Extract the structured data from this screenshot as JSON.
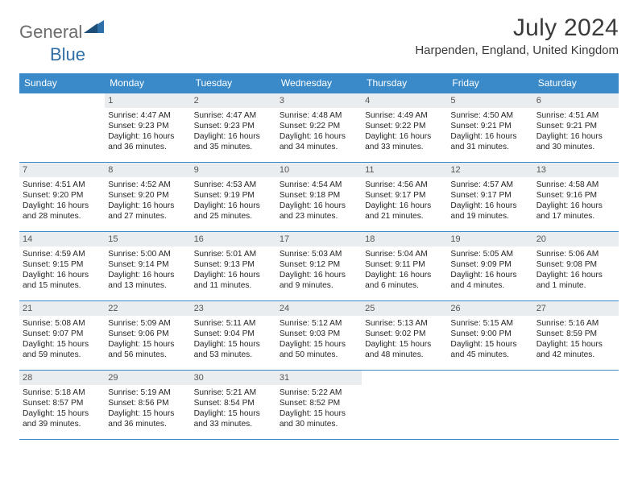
{
  "logo": {
    "word1": "General",
    "word2": "Blue"
  },
  "title": "July 2024",
  "location": "Harpenden, England, United Kingdom",
  "colors": {
    "header_bg": "#3a8ac9",
    "header_text": "#ffffff",
    "daynum_bg": "#e9edef",
    "daynum_text": "#555555",
    "cell_text": "#262626",
    "rule": "#3a8ac9",
    "logo_gray": "#6b6b6b",
    "logo_blue": "#2f6fa7",
    "page_bg": "#ffffff"
  },
  "day_names": [
    "Sunday",
    "Monday",
    "Tuesday",
    "Wednesday",
    "Thursday",
    "Friday",
    "Saturday"
  ],
  "weeks": [
    [
      {
        "n": "",
        "sr": "",
        "ss": "",
        "dl1": "",
        "dl2": ""
      },
      {
        "n": "1",
        "sr": "Sunrise: 4:47 AM",
        "ss": "Sunset: 9:23 PM",
        "dl1": "Daylight: 16 hours",
        "dl2": "and 36 minutes."
      },
      {
        "n": "2",
        "sr": "Sunrise: 4:47 AM",
        "ss": "Sunset: 9:23 PM",
        "dl1": "Daylight: 16 hours",
        "dl2": "and 35 minutes."
      },
      {
        "n": "3",
        "sr": "Sunrise: 4:48 AM",
        "ss": "Sunset: 9:22 PM",
        "dl1": "Daylight: 16 hours",
        "dl2": "and 34 minutes."
      },
      {
        "n": "4",
        "sr": "Sunrise: 4:49 AM",
        "ss": "Sunset: 9:22 PM",
        "dl1": "Daylight: 16 hours",
        "dl2": "and 33 minutes."
      },
      {
        "n": "5",
        "sr": "Sunrise: 4:50 AM",
        "ss": "Sunset: 9:21 PM",
        "dl1": "Daylight: 16 hours",
        "dl2": "and 31 minutes."
      },
      {
        "n": "6",
        "sr": "Sunrise: 4:51 AM",
        "ss": "Sunset: 9:21 PM",
        "dl1": "Daylight: 16 hours",
        "dl2": "and 30 minutes."
      }
    ],
    [
      {
        "n": "7",
        "sr": "Sunrise: 4:51 AM",
        "ss": "Sunset: 9:20 PM",
        "dl1": "Daylight: 16 hours",
        "dl2": "and 28 minutes."
      },
      {
        "n": "8",
        "sr": "Sunrise: 4:52 AM",
        "ss": "Sunset: 9:20 PM",
        "dl1": "Daylight: 16 hours",
        "dl2": "and 27 minutes."
      },
      {
        "n": "9",
        "sr": "Sunrise: 4:53 AM",
        "ss": "Sunset: 9:19 PM",
        "dl1": "Daylight: 16 hours",
        "dl2": "and 25 minutes."
      },
      {
        "n": "10",
        "sr": "Sunrise: 4:54 AM",
        "ss": "Sunset: 9:18 PM",
        "dl1": "Daylight: 16 hours",
        "dl2": "and 23 minutes."
      },
      {
        "n": "11",
        "sr": "Sunrise: 4:56 AM",
        "ss": "Sunset: 9:17 PM",
        "dl1": "Daylight: 16 hours",
        "dl2": "and 21 minutes."
      },
      {
        "n": "12",
        "sr": "Sunrise: 4:57 AM",
        "ss": "Sunset: 9:17 PM",
        "dl1": "Daylight: 16 hours",
        "dl2": "and 19 minutes."
      },
      {
        "n": "13",
        "sr": "Sunrise: 4:58 AM",
        "ss": "Sunset: 9:16 PM",
        "dl1": "Daylight: 16 hours",
        "dl2": "and 17 minutes."
      }
    ],
    [
      {
        "n": "14",
        "sr": "Sunrise: 4:59 AM",
        "ss": "Sunset: 9:15 PM",
        "dl1": "Daylight: 16 hours",
        "dl2": "and 15 minutes."
      },
      {
        "n": "15",
        "sr": "Sunrise: 5:00 AM",
        "ss": "Sunset: 9:14 PM",
        "dl1": "Daylight: 16 hours",
        "dl2": "and 13 minutes."
      },
      {
        "n": "16",
        "sr": "Sunrise: 5:01 AM",
        "ss": "Sunset: 9:13 PM",
        "dl1": "Daylight: 16 hours",
        "dl2": "and 11 minutes."
      },
      {
        "n": "17",
        "sr": "Sunrise: 5:03 AM",
        "ss": "Sunset: 9:12 PM",
        "dl1": "Daylight: 16 hours",
        "dl2": "and 9 minutes."
      },
      {
        "n": "18",
        "sr": "Sunrise: 5:04 AM",
        "ss": "Sunset: 9:11 PM",
        "dl1": "Daylight: 16 hours",
        "dl2": "and 6 minutes."
      },
      {
        "n": "19",
        "sr": "Sunrise: 5:05 AM",
        "ss": "Sunset: 9:09 PM",
        "dl1": "Daylight: 16 hours",
        "dl2": "and 4 minutes."
      },
      {
        "n": "20",
        "sr": "Sunrise: 5:06 AM",
        "ss": "Sunset: 9:08 PM",
        "dl1": "Daylight: 16 hours",
        "dl2": "and 1 minute."
      }
    ],
    [
      {
        "n": "21",
        "sr": "Sunrise: 5:08 AM",
        "ss": "Sunset: 9:07 PM",
        "dl1": "Daylight: 15 hours",
        "dl2": "and 59 minutes."
      },
      {
        "n": "22",
        "sr": "Sunrise: 5:09 AM",
        "ss": "Sunset: 9:06 PM",
        "dl1": "Daylight: 15 hours",
        "dl2": "and 56 minutes."
      },
      {
        "n": "23",
        "sr": "Sunrise: 5:11 AM",
        "ss": "Sunset: 9:04 PM",
        "dl1": "Daylight: 15 hours",
        "dl2": "and 53 minutes."
      },
      {
        "n": "24",
        "sr": "Sunrise: 5:12 AM",
        "ss": "Sunset: 9:03 PM",
        "dl1": "Daylight: 15 hours",
        "dl2": "and 50 minutes."
      },
      {
        "n": "25",
        "sr": "Sunrise: 5:13 AM",
        "ss": "Sunset: 9:02 PM",
        "dl1": "Daylight: 15 hours",
        "dl2": "and 48 minutes."
      },
      {
        "n": "26",
        "sr": "Sunrise: 5:15 AM",
        "ss": "Sunset: 9:00 PM",
        "dl1": "Daylight: 15 hours",
        "dl2": "and 45 minutes."
      },
      {
        "n": "27",
        "sr": "Sunrise: 5:16 AM",
        "ss": "Sunset: 8:59 PM",
        "dl1": "Daylight: 15 hours",
        "dl2": "and 42 minutes."
      }
    ],
    [
      {
        "n": "28",
        "sr": "Sunrise: 5:18 AM",
        "ss": "Sunset: 8:57 PM",
        "dl1": "Daylight: 15 hours",
        "dl2": "and 39 minutes."
      },
      {
        "n": "29",
        "sr": "Sunrise: 5:19 AM",
        "ss": "Sunset: 8:56 PM",
        "dl1": "Daylight: 15 hours",
        "dl2": "and 36 minutes."
      },
      {
        "n": "30",
        "sr": "Sunrise: 5:21 AM",
        "ss": "Sunset: 8:54 PM",
        "dl1": "Daylight: 15 hours",
        "dl2": "and 33 minutes."
      },
      {
        "n": "31",
        "sr": "Sunrise: 5:22 AM",
        "ss": "Sunset: 8:52 PM",
        "dl1": "Daylight: 15 hours",
        "dl2": "and 30 minutes."
      },
      {
        "n": "",
        "sr": "",
        "ss": "",
        "dl1": "",
        "dl2": ""
      },
      {
        "n": "",
        "sr": "",
        "ss": "",
        "dl1": "",
        "dl2": ""
      },
      {
        "n": "",
        "sr": "",
        "ss": "",
        "dl1": "",
        "dl2": ""
      }
    ]
  ]
}
